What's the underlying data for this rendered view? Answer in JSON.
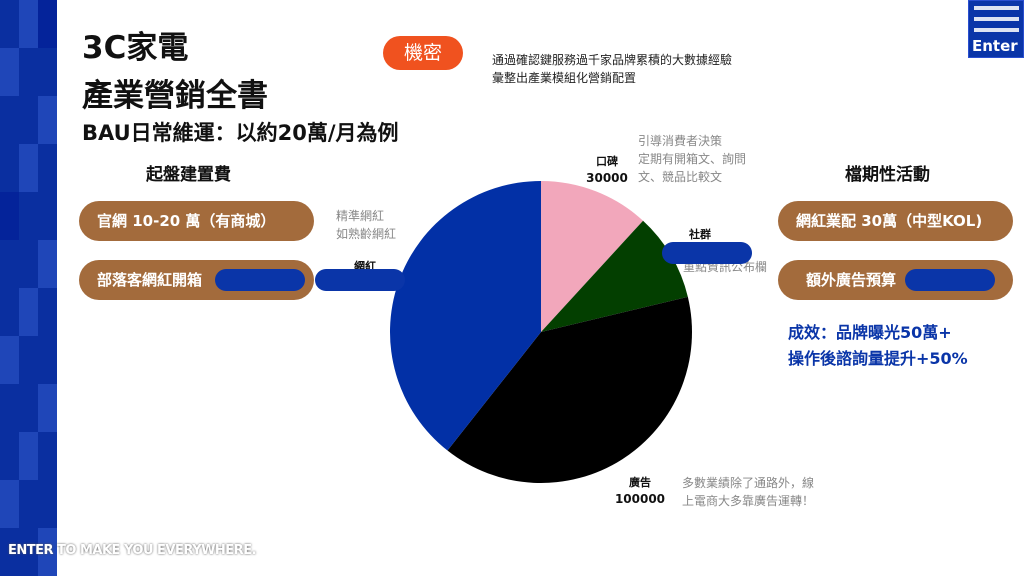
{
  "title": {
    "line1": "3C家電",
    "line2": "產業營銷全書",
    "subtitle": "BAU日常維運：以約20萬/月為例"
  },
  "confidential_badge": "機密",
  "description": [
    "通過確認鍵服務過千家品牌累積的大數據經驗",
    "彙整出產業模組化營銷配置"
  ],
  "setup": {
    "heading": "起盤建置費",
    "items": [
      "官網 10-20 萬（有商城）",
      "部落客網紅開箱"
    ]
  },
  "campaign": {
    "heading": "檔期性活動",
    "items": [
      "網紅業配 30萬（中型KOL)",
      "額外廣告預算"
    ]
  },
  "result": [
    "成效：品牌曝光50萬+",
    "操作後諮詢量提升+50%"
  ],
  "notes": {
    "kol": [
      "精準網紅",
      "如熟齡網紅"
    ],
    "wom": [
      "引導消費者決策",
      "定期有開箱文、詢問",
      "文、競品比較文"
    ],
    "social": [
      "重點資訊公布欄"
    ],
    "ads": [
      "多數業績除了通路外，線",
      "上電商大多靠廣告運轉！"
    ]
  },
  "chart_data": {
    "type": "pie",
    "slices": [
      {
        "label": "口碑",
        "value": 30000,
        "color": "#f2a7bb"
      },
      {
        "label": "社群",
        "value": 24000,
        "color": "#033f00"
      },
      {
        "label": "廣告",
        "value": 100000,
        "color": "#000000"
      },
      {
        "label": "網紅",
        "value": 100000,
        "color": "#0230a6"
      }
    ]
  },
  "logo": "Enter",
  "footer": "ENTER TO MAKE YOU EVERYWHERE."
}
